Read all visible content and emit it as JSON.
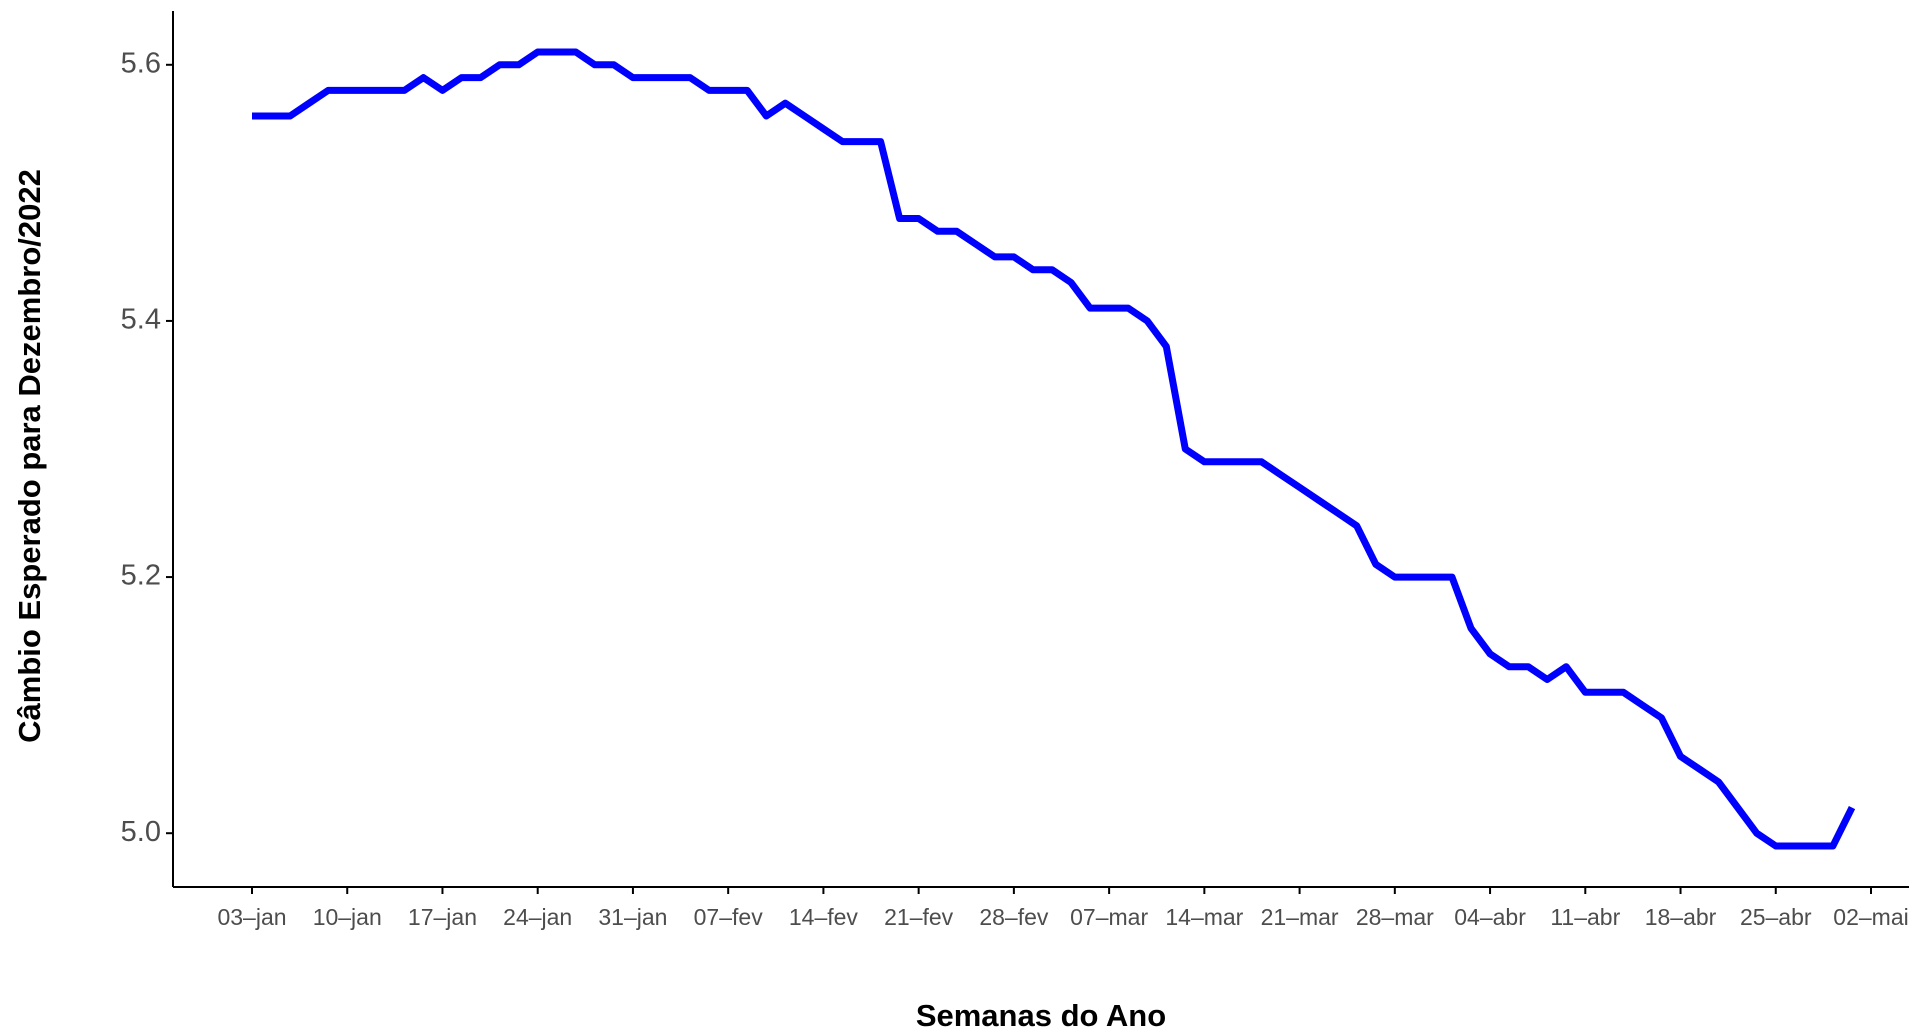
{
  "chart_data": {
    "type": "line",
    "x_label": "Semanas do Ano",
    "y_label": "Câmbio Esperado para Dezembro/2022",
    "categories": [
      "03–jan",
      null,
      null,
      null,
      null,
      "10–jan",
      null,
      null,
      null,
      null,
      "17–jan",
      null,
      null,
      null,
      null,
      "24–jan",
      null,
      null,
      null,
      null,
      "31–jan",
      null,
      null,
      null,
      null,
      "07–fev",
      null,
      null,
      null,
      null,
      "14–fev",
      null,
      null,
      null,
      null,
      "21–fev",
      null,
      null,
      null,
      null,
      "28–fev",
      null,
      null,
      null,
      null,
      "07–mar",
      null,
      null,
      null,
      null,
      "14–mar",
      null,
      null,
      null,
      null,
      "21–mar",
      null,
      null,
      null,
      null,
      "28–mar",
      null,
      null,
      null,
      null,
      "04–abr",
      null,
      null,
      null,
      null,
      "11–abr",
      null,
      null,
      null,
      null,
      "18–abr",
      null,
      null,
      null,
      null,
      "25–abr",
      null,
      null,
      null,
      null,
      "02–mai"
    ],
    "series": [
      {
        "name": "Câmbio Esperado",
        "color": "#0000ff",
        "values": [
          5.56,
          5.56,
          5.56,
          5.57,
          5.58,
          5.58,
          5.58,
          5.58,
          5.58,
          5.59,
          5.58,
          5.59,
          5.59,
          5.6,
          5.6,
          5.61,
          5.61,
          5.61,
          5.6,
          5.6,
          5.59,
          5.59,
          5.59,
          5.59,
          5.58,
          5.58,
          5.58,
          5.56,
          5.57,
          5.56,
          5.55,
          5.54,
          5.54,
          5.54,
          5.48,
          5.48,
          5.47,
          5.47,
          5.46,
          5.45,
          5.45,
          5.44,
          5.44,
          5.43,
          5.41,
          5.41,
          5.41,
          5.4,
          5.38,
          5.3,
          5.29,
          5.29,
          5.29,
          5.29,
          5.28,
          5.27,
          5.26,
          5.25,
          5.24,
          5.21,
          5.2,
          5.2,
          5.2,
          5.2,
          5.16,
          5.14,
          5.13,
          5.13,
          5.12,
          5.13,
          5.11,
          5.11,
          5.11,
          5.1,
          5.09,
          5.06,
          5.05,
          5.04,
          5.02,
          5.0,
          4.99,
          4.99,
          4.99,
          4.99,
          5.02,
          null
        ]
      }
    ],
    "ylim": [
      4.958,
      5.642
    ],
    "yticks": [
      {
        "value": 5.0,
        "label": "5.0"
      },
      {
        "value": 5.2,
        "label": "5.2"
      },
      {
        "value": 5.4,
        "label": "5.4"
      },
      {
        "value": 5.6,
        "label": "5.6"
      }
    ],
    "grid": false
  }
}
